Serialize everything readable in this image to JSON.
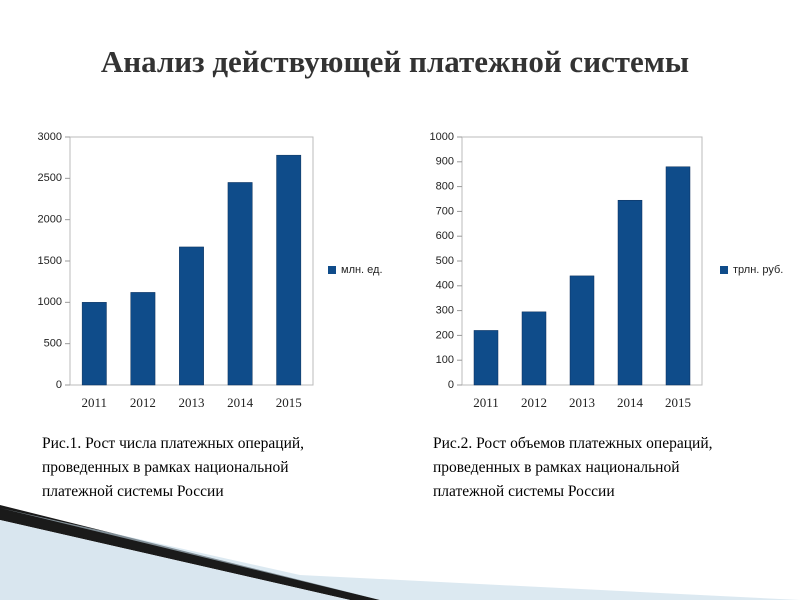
{
  "title": "Анализ действующей платежной системы",
  "chart_data": [
    {
      "type": "bar",
      "categories": [
        "2011",
        "2012",
        "2013",
        "2014",
        "2015"
      ],
      "series": [
        {
          "name": "млн. ед.",
          "color": "#0f4c8a",
          "values": [
            1000,
            1120,
            1670,
            2450,
            2780
          ]
        }
      ],
      "ylim": [
        0,
        3000
      ],
      "yticks": [
        0,
        500,
        1000,
        1500,
        2000,
        2500,
        3000
      ],
      "grid": false,
      "legend": "right",
      "caption": "Рис.1. Рост числа платежных операций, проведенных в рамках национальной платежной системы России"
    },
    {
      "type": "bar",
      "categories": [
        "2011",
        "2012",
        "2013",
        "2014",
        "2015"
      ],
      "series": [
        {
          "name": "трлн. руб.",
          "color": "#0f4c8a",
          "values": [
            220,
            295,
            440,
            745,
            880
          ]
        }
      ],
      "ylim": [
        0,
        1000
      ],
      "yticks": [
        0,
        100,
        200,
        300,
        400,
        500,
        600,
        700,
        800,
        900,
        1000
      ],
      "grid": false,
      "legend": "right",
      "caption": "Рис.2. Рост объемов платежных операций, проведенных в рамках национальной платежной системы России"
    }
  ]
}
